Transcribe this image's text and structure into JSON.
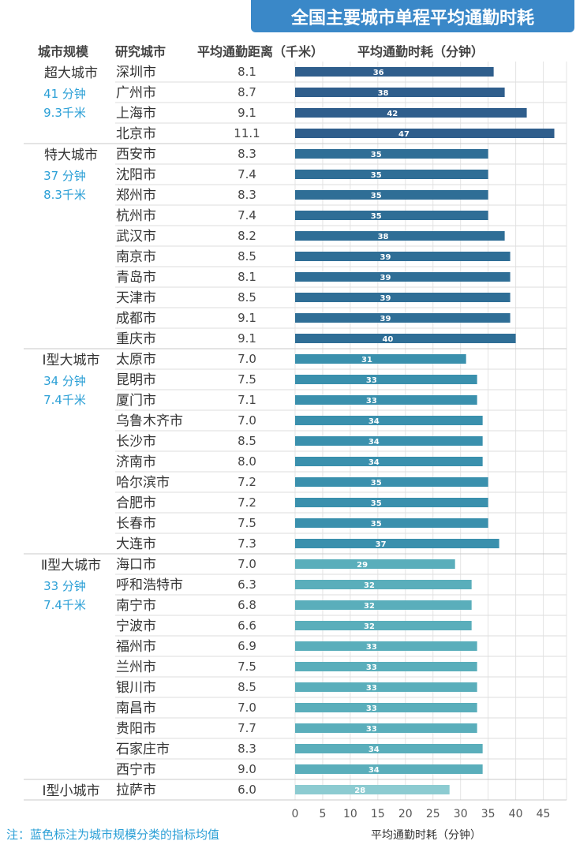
{
  "title": "全国主要城市单程平均通勤时耗",
  "note": "注：蓝色标注为城市规模分类的指标均值",
  "chart_data": {
    "type": "bar",
    "orientation": "horizontal",
    "headers": [
      "城市规模",
      "研究城市",
      "平均通勤距离（千米）",
      "平均通勤时耗（分钟）"
    ],
    "xlabel": "平均通勤时耗（分钟）",
    "xlim": [
      0,
      47
    ],
    "xticks": [
      0,
      5,
      10,
      15,
      20,
      25,
      30,
      35,
      40,
      45
    ],
    "grid": true,
    "groups": [
      {
        "category": "超大城市",
        "avg_time": "41 分钟",
        "avg_dist": "9.3千米",
        "color": "#2f5e8c",
        "cities": [
          {
            "name": "深圳市",
            "distance": "8.1",
            "time": 36
          },
          {
            "name": "广州市",
            "distance": "8.7",
            "time": 38
          },
          {
            "name": "上海市",
            "distance": "9.1",
            "time": 42
          },
          {
            "name": "北京市",
            "distance": "11.1",
            "time": 47
          }
        ]
      },
      {
        "category": "特大城市",
        "avg_time": "37 分钟",
        "avg_dist": "8.3千米",
        "color": "#2f6e96",
        "cities": [
          {
            "name": "西安市",
            "distance": "8.3",
            "time": 35
          },
          {
            "name": "沈阳市",
            "distance": "7.4",
            "time": 35
          },
          {
            "name": "郑州市",
            "distance": "8.3",
            "time": 35
          },
          {
            "name": "杭州市",
            "distance": "7.4",
            "time": 35
          },
          {
            "name": "武汉市",
            "distance": "8.2",
            "time": 38
          },
          {
            "name": "南京市",
            "distance": "8.5",
            "time": 39
          },
          {
            "name": "青岛市",
            "distance": "8.1",
            "time": 39
          },
          {
            "name": "天津市",
            "distance": "8.5",
            "time": 39
          },
          {
            "name": "成都市",
            "distance": "9.1",
            "time": 39
          },
          {
            "name": "重庆市",
            "distance": "9.1",
            "time": 40
          }
        ]
      },
      {
        "category": "Ⅰ型大城市",
        "avg_time": "34 分钟",
        "avg_dist": "7.4千米",
        "color": "#3a90ad",
        "cities": [
          {
            "name": "太原市",
            "distance": "7.0",
            "time": 31
          },
          {
            "name": "昆明市",
            "distance": "7.5",
            "time": 33
          },
          {
            "name": "厦门市",
            "distance": "7.1",
            "time": 33
          },
          {
            "name": "乌鲁木齐市",
            "distance": "7.0",
            "time": 34
          },
          {
            "name": "长沙市",
            "distance": "8.5",
            "time": 34
          },
          {
            "name": "济南市",
            "distance": "8.0",
            "time": 34
          },
          {
            "name": "哈尔滨市",
            "distance": "7.2",
            "time": 35
          },
          {
            "name": "合肥市",
            "distance": "7.2",
            "time": 35
          },
          {
            "name": "长春市",
            "distance": "7.5",
            "time": 35
          },
          {
            "name": "大连市",
            "distance": "7.3",
            "time": 37
          }
        ]
      },
      {
        "category": "Ⅱ型大城市",
        "avg_time": "33 分钟",
        "avg_dist": "7.4千米",
        "color": "#5aaebb",
        "cities": [
          {
            "name": "海口市",
            "distance": "7.0",
            "time": 29
          },
          {
            "name": "呼和浩特市",
            "distance": "6.3",
            "time": 32
          },
          {
            "name": "南宁市",
            "distance": "6.8",
            "time": 32
          },
          {
            "name": "宁波市",
            "distance": "6.6",
            "time": 32
          },
          {
            "name": "福州市",
            "distance": "6.9",
            "time": 33
          },
          {
            "name": "兰州市",
            "distance": "7.5",
            "time": 33
          },
          {
            "name": "银川市",
            "distance": "8.5",
            "time": 33
          },
          {
            "name": "南昌市",
            "distance": "7.0",
            "time": 33
          },
          {
            "name": "贵阳市",
            "distance": "7.7",
            "time": 33
          },
          {
            "name": "石家庄市",
            "distance": "8.3",
            "time": 34
          },
          {
            "name": "西宁市",
            "distance": "9.0",
            "time": 34
          }
        ]
      },
      {
        "category": "Ⅰ型小城市",
        "avg_time": "",
        "avg_dist": "",
        "color": "#8ccbd1",
        "cities": [
          {
            "name": "拉萨市",
            "distance": "6.0",
            "time": 28
          }
        ]
      }
    ]
  }
}
